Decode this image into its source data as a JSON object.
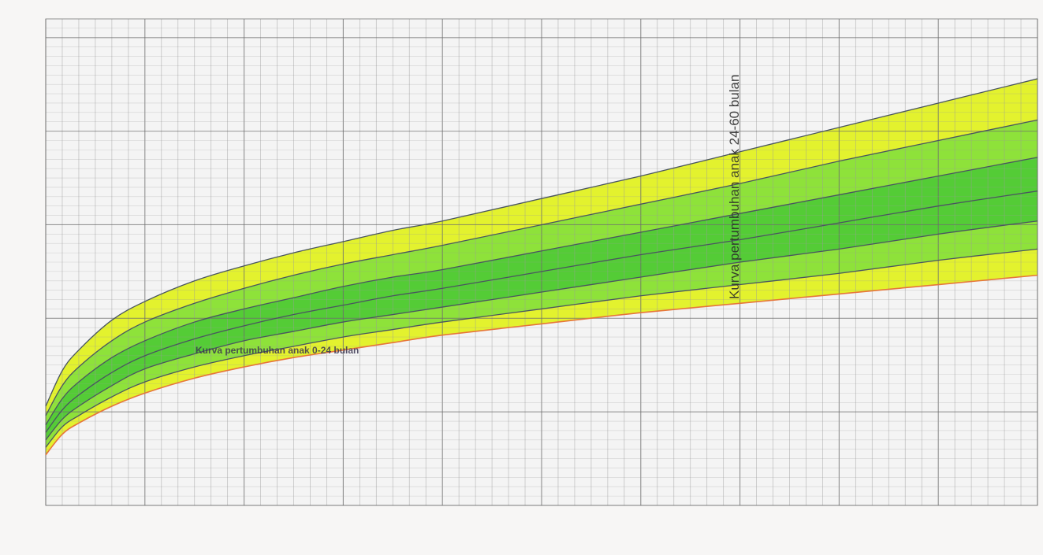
{
  "chart_data": {
    "type": "area",
    "title": "",
    "xlabel": "",
    "ylabel": "",
    "grid": true,
    "xlim": [
      0,
      60
    ],
    "annotations": [
      "Kurva pertumbuhan anak 0-24 bulan",
      "Kurva pertumbuhan anak 24-60 bulan"
    ],
    "x": [
      0,
      1,
      2,
      4,
      6,
      9,
      12,
      15,
      18,
      21,
      24,
      30,
      36,
      42,
      48,
      54,
      60
    ],
    "series": [
      {
        "values": [
          5.3,
          7.2,
          8.3,
          9.9,
          10.9,
          12.0,
          12.8,
          13.5,
          14.1,
          14.7,
          15.2,
          16.4,
          17.6,
          18.9,
          20.2,
          21.5,
          22.8
        ]
      },
      {
        "values": [
          4.8,
          6.4,
          7.4,
          8.8,
          9.8,
          10.8,
          11.6,
          12.3,
          12.9,
          13.4,
          13.9,
          15.0,
          16.1,
          17.2,
          18.4,
          19.5,
          20.6
        ]
      },
      {
        "values": [
          4.3,
          5.7,
          6.6,
          7.9,
          8.8,
          9.8,
          10.5,
          11.1,
          11.7,
          12.2,
          12.6,
          13.6,
          14.6,
          15.6,
          16.6,
          17.6,
          18.6
        ]
      },
      {
        "values": [
          3.9,
          5.1,
          5.9,
          7.1,
          8.0,
          8.9,
          9.6,
          10.2,
          10.7,
          11.2,
          11.6,
          12.5,
          13.4,
          14.2,
          15.1,
          16.0,
          16.8
        ]
      },
      {
        "values": [
          3.5,
          4.6,
          5.3,
          6.4,
          7.3,
          8.1,
          8.8,
          9.3,
          9.8,
          10.2,
          10.6,
          11.4,
          12.2,
          13.0,
          13.7,
          14.5,
          15.2
        ]
      },
      {
        "values": [
          3.1,
          4.2,
          4.8,
          5.8,
          6.6,
          7.4,
          8.0,
          8.5,
          9.0,
          9.4,
          9.8,
          10.5,
          11.2,
          11.8,
          12.4,
          13.1,
          13.7
        ]
      },
      {
        "values": [
          2.7,
          3.8,
          4.4,
          5.3,
          6.0,
          6.8,
          7.4,
          7.9,
          8.3,
          8.7,
          9.1,
          9.7,
          10.3,
          10.8,
          11.3,
          11.8,
          12.3
        ]
      }
    ],
    "band_colors": [
      "#e3f22e",
      "#8ee23a",
      "#54cc36",
      "#54cc36",
      "#8ee23a",
      "#e3f22e"
    ],
    "line_color": "#4a5560",
    "lower_line_color": "#e6753a",
    "grid_color": "#9a9a9a",
    "grid_major_color": "#6e6e6e",
    "panel_color": "#f4f4f4",
    "background_color": "#f7f6f5"
  }
}
